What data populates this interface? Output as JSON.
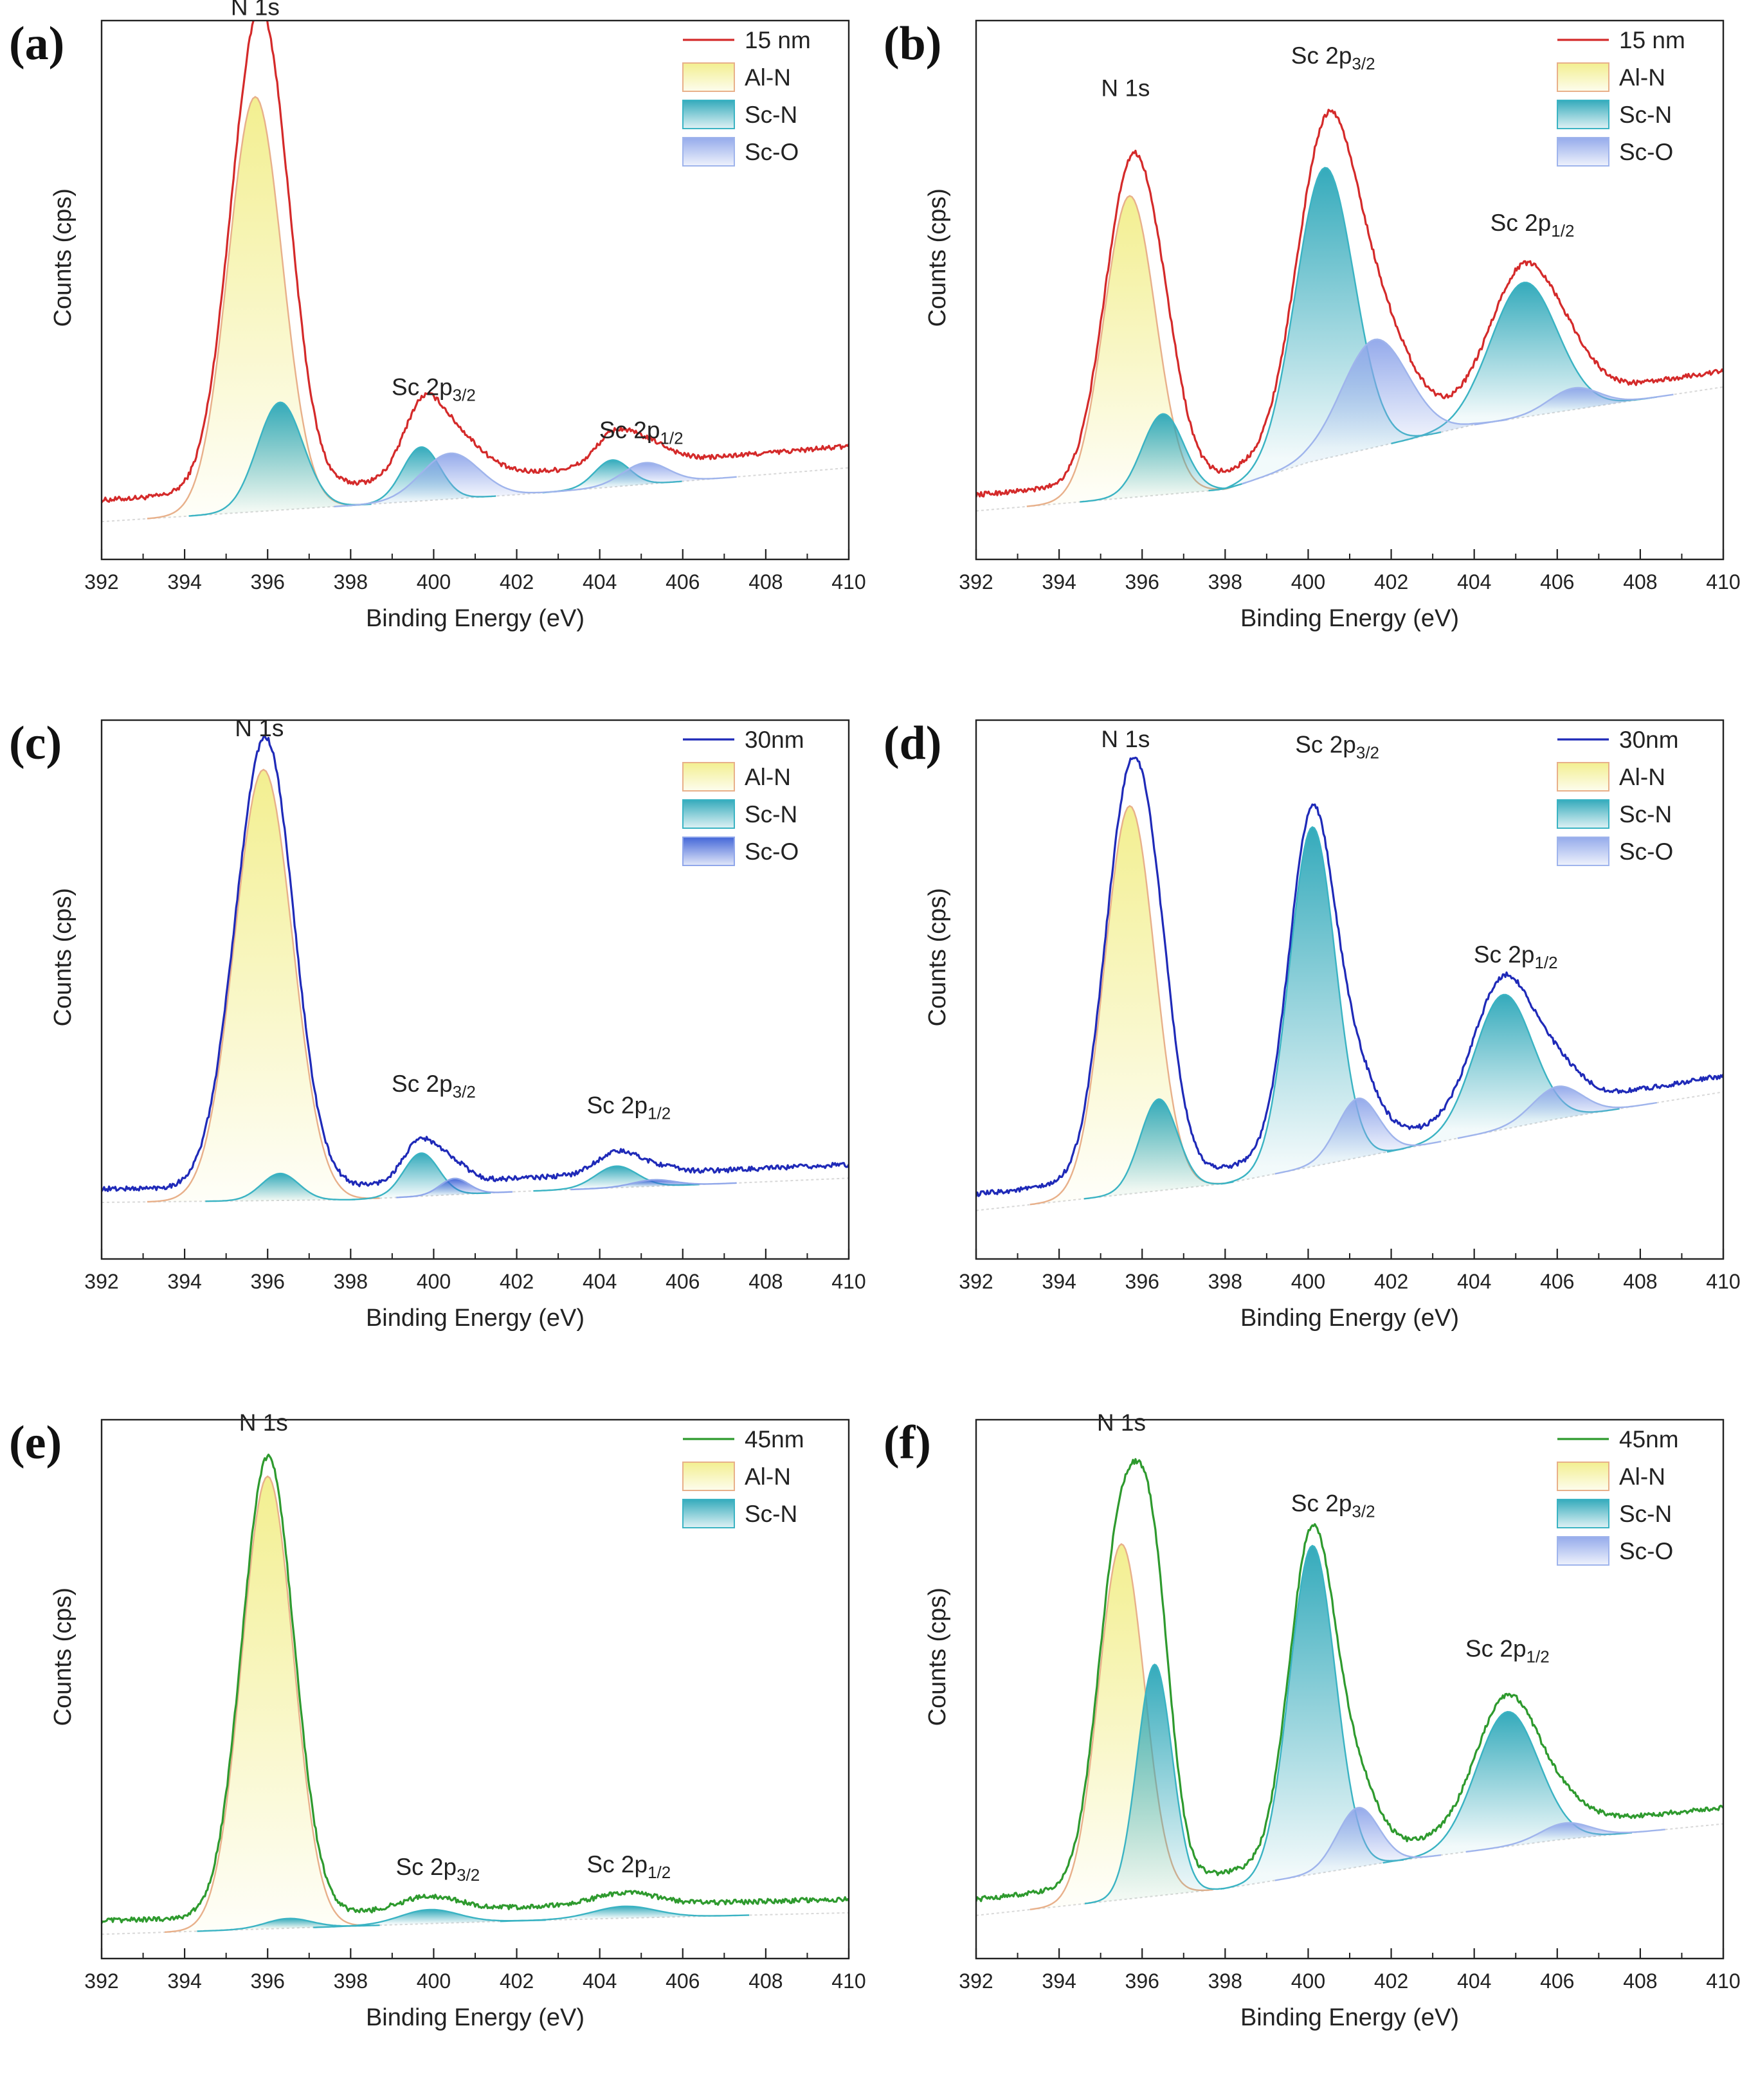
{
  "figure": {
    "colors": {
      "alN": "#f2ee8a",
      "alN_edge": "#e8b08a",
      "scN": "#2aa6b8",
      "scN_edge": "#3ab3c3",
      "scO": "#8fa6ea",
      "scO_edge": "#9fb4ec",
      "scO_dark": "#3a5fd6",
      "red": "#d42a2a",
      "blue": "#1f2ab8",
      "green": "#2e9a2e",
      "background_line": "#d8d8d8"
    }
  },
  "chart_data": [
    {
      "id": "a",
      "type": "line",
      "panel_label": "(a)",
      "xlabel": "Binding Energy (eV)",
      "ylabel": "Counts (cps)",
      "xlim": [
        392,
        410
      ],
      "ylim": [
        0,
        100
      ],
      "xticks": [
        "392",
        "394",
        "396",
        "398",
        "400",
        "402",
        "404",
        "406",
        "408",
        "410"
      ],
      "spectrum": {
        "name": "15 nm",
        "color": "red"
      },
      "baseline": {
        "x": [
          392,
          398,
          402,
          410
        ],
        "y": [
          7,
          10,
          12,
          17
        ]
      },
      "envelope_offset": 4,
      "components": [
        {
          "name": "Al-N",
          "style": "alN",
          "peaks": [
            [
              395.7,
              77,
              0.65
            ]
          ]
        },
        {
          "name": "Sc-N",
          "style": "scN",
          "peaks": [
            [
              396.3,
              20,
              0.55
            ],
            [
              399.7,
              10,
              0.45
            ],
            [
              404.3,
              5,
              0.42
            ]
          ]
        },
        {
          "name": "Sc-O",
          "style": "scO",
          "peaks": [
            [
              400.4,
              8.5,
              0.7
            ],
            [
              405.1,
              4,
              0.55
            ]
          ]
        }
      ],
      "legend": [
        "15 nm",
        "Al-N",
        "Sc-N",
        "Sc-O"
      ],
      "annotations": [
        {
          "main": "N 1s",
          "sub": "",
          "x": 395.7,
          "y": 101
        },
        {
          "main": "Sc 2p",
          "sub": "3/2",
          "x": 400.0,
          "y": 30.5
        },
        {
          "main": "Sc 2p",
          "sub": "1/2",
          "x": 405.0,
          "y": 22.5
        }
      ]
    },
    {
      "id": "b",
      "type": "line",
      "panel_label": "(b)",
      "xlabel": "Binding Energy (eV)",
      "ylabel": "Counts (cps)",
      "xlim": [
        392,
        410
      ],
      "ylim": [
        0,
        100
      ],
      "xticks": [
        "392",
        "394",
        "396",
        "398",
        "400",
        "402",
        "404",
        "406",
        "408",
        "410"
      ],
      "spectrum": {
        "name": "15 nm",
        "color": "red"
      },
      "baseline": {
        "x": [
          392,
          398,
          400,
          404,
          410
        ],
        "y": [
          9,
          13,
          18,
          25,
          32
        ]
      },
      "envelope_offset": 3,
      "components": [
        {
          "name": "Al-N",
          "style": "alN",
          "peaks": [
            [
              395.7,
              56,
              0.62
            ]
          ]
        },
        {
          "name": "Sc-N",
          "style": "scN",
          "peaks": [
            [
              396.5,
              15,
              0.5
            ],
            [
              400.4,
              54,
              0.7
            ],
            [
              405.2,
              25,
              0.8
            ]
          ]
        },
        {
          "name": "Sc-O",
          "style": "scO",
          "peaks": [
            [
              401.6,
              20,
              0.8
            ],
            [
              406.4,
              4,
              0.6
            ]
          ]
        }
      ],
      "legend": [
        "15 nm",
        "Al-N",
        "Sc-N",
        "Sc-O"
      ],
      "annotations": [
        {
          "main": "N 1s",
          "sub": "",
          "x": 395.6,
          "y": 86
        },
        {
          "main": "Sc 2p",
          "sub": "3/2",
          "x": 400.6,
          "y": 92
        },
        {
          "main": "Sc 2p",
          "sub": "1/2",
          "x": 405.4,
          "y": 61
        }
      ]
    },
    {
      "id": "c",
      "type": "line",
      "panel_label": "(c)",
      "xlabel": "Binding Energy (eV)",
      "ylabel": "Counts (cps)",
      "xlim": [
        392,
        410
      ],
      "ylim": [
        0,
        100
      ],
      "xticks": [
        "392",
        "394",
        "396",
        "398",
        "400",
        "402",
        "404",
        "406",
        "408",
        "410"
      ],
      "spectrum": {
        "name": "30nm",
        "color": "blue"
      },
      "baseline": {
        "x": [
          392,
          398,
          402,
          407,
          410
        ],
        "y": [
          10.5,
          11,
          12.5,
          14,
          15
        ]
      },
      "envelope_offset": 2.5,
      "components": [
        {
          "name": "Al-N",
          "style": "alN",
          "peaks": [
            [
              395.9,
              80,
              0.7
            ]
          ]
        },
        {
          "name": "Sc-N",
          "style": "scN",
          "peaks": [
            [
              396.3,
              5,
              0.45
            ],
            [
              399.7,
              8,
              0.42
            ],
            [
              404.4,
              4,
              0.5
            ]
          ]
        },
        {
          "name": "Sc-O",
          "style": "scO_dark",
          "peaks": [
            [
              400.5,
              3,
              0.35
            ],
            [
              405.3,
              1.2,
              0.5
            ]
          ]
        }
      ],
      "legend": [
        "30nm",
        "Al-N",
        "Sc-N",
        "Sc-O"
      ],
      "annotations": [
        {
          "main": "N 1s",
          "sub": "",
          "x": 395.8,
          "y": 97
        },
        {
          "main": "Sc 2p",
          "sub": "3/2",
          "x": 400.0,
          "y": 31
        },
        {
          "main": "Sc 2p",
          "sub": "1/2",
          "x": 404.7,
          "y": 27
        }
      ]
    },
    {
      "id": "d",
      "type": "line",
      "panel_label": "(d)",
      "xlabel": "Binding Energy (eV)",
      "ylabel": "Counts (cps)",
      "xlim": [
        392,
        410
      ],
      "ylim": [
        0,
        100
      ],
      "xticks": [
        "392",
        "394",
        "396",
        "398",
        "400",
        "402",
        "404",
        "406",
        "408",
        "410"
      ],
      "spectrum": {
        "name": "30nm",
        "color": "blue"
      },
      "baseline": {
        "x": [
          392,
          398,
          402,
          406,
          410
        ],
        "y": [
          9,
          14,
          20,
          26,
          31
        ]
      },
      "envelope_offset": 3,
      "components": [
        {
          "name": "Al-N",
          "style": "alN",
          "peaks": [
            [
              395.7,
              72,
              0.6
            ]
          ]
        },
        {
          "name": "Sc-N",
          "style": "scN",
          "peaks": [
            [
              396.4,
              17,
              0.45
            ],
            [
              400.1,
              63,
              0.55
            ],
            [
              404.7,
              25,
              0.7
            ]
          ]
        },
        {
          "name": "Sc-O",
          "style": "scO",
          "peaks": [
            [
              401.2,
              11,
              0.5
            ],
            [
              406.0,
              6,
              0.6
            ]
          ]
        }
      ],
      "legend": [
        "30nm",
        "Al-N",
        "Sc-N",
        "Sc-O"
      ],
      "annotations": [
        {
          "main": "N 1s",
          "sub": "",
          "x": 395.6,
          "y": 95
        },
        {
          "main": "Sc 2p",
          "sub": "3/2",
          "x": 400.7,
          "y": 94
        },
        {
          "main": "Sc 2p",
          "sub": "1/2",
          "x": 405.0,
          "y": 55
        }
      ]
    },
    {
      "id": "e",
      "type": "line",
      "panel_label": "(e)",
      "xlabel": "Binding Energy (eV)",
      "ylabel": "Counts (cps)",
      "xlim": [
        392,
        410
      ],
      "ylim": [
        0,
        100
      ],
      "xticks": [
        "392",
        "394",
        "396",
        "398",
        "400",
        "402",
        "404",
        "406",
        "408",
        "410"
      ],
      "spectrum": {
        "name": "45nm",
        "color": "green"
      },
      "baseline": {
        "x": [
          392,
          398,
          402,
          410
        ],
        "y": [
          4.5,
          6,
          7,
          8.5
        ]
      },
      "envelope_offset": 2.5,
      "components": [
        {
          "name": "Al-N",
          "style": "alN",
          "peaks": [
            [
              396.0,
              84,
              0.62
            ]
          ]
        },
        {
          "name": "Sc-N",
          "style": "scN",
          "peaks": [
            [
              396.5,
              1.8,
              0.55
            ],
            [
              399.9,
              2.6,
              0.7
            ],
            [
              404.6,
              2.2,
              0.75
            ]
          ]
        }
      ],
      "legend": [
        "45nm",
        "Al-N",
        "Sc-N"
      ],
      "annotations": [
        {
          "main": "N 1s",
          "sub": "",
          "x": 395.9,
          "y": 98
        },
        {
          "main": "Sc 2p",
          "sub": "3/2",
          "x": 400.1,
          "y": 15.5
        },
        {
          "main": "Sc 2p",
          "sub": "1/2",
          "x": 404.7,
          "y": 16
        }
      ]
    },
    {
      "id": "f",
      "type": "line",
      "panel_label": "(f)",
      "xlabel": "Binding Energy (eV)",
      "ylabel": "Counts (cps)",
      "xlim": [
        392,
        410
      ],
      "ylim": [
        0,
        100
      ],
      "xticks": [
        "392",
        "394",
        "396",
        "398",
        "400",
        "402",
        "404",
        "406",
        "408",
        "410"
      ],
      "spectrum": {
        "name": "45nm",
        "color": "green"
      },
      "baseline": {
        "x": [
          392,
          398,
          402,
          406,
          410
        ],
        "y": [
          8,
          13,
          18,
          22,
          25
        ]
      },
      "envelope_offset": 3,
      "components": [
        {
          "name": "Al-N",
          "style": "alN",
          "peaks": [
            [
              395.5,
              66,
              0.55
            ]
          ]
        },
        {
          "name": "Sc-N",
          "style": "scN",
          "peaks": [
            [
              396.3,
              43,
              0.42
            ],
            [
              400.1,
              61,
              0.55
            ],
            [
              404.8,
              25,
              0.75
            ]
          ]
        },
        {
          "name": "Sc-O",
          "style": "scO",
          "peaks": [
            [
              401.2,
              11,
              0.5
            ],
            [
              406.2,
              3,
              0.6
            ]
          ]
        }
      ],
      "legend": [
        "45nm",
        "Al-N",
        "Sc-N",
        "Sc-O"
      ],
      "annotations": [
        {
          "main": "N 1s",
          "sub": "",
          "x": 395.5,
          "y": 98
        },
        {
          "main": "Sc 2p",
          "sub": "3/2",
          "x": 400.6,
          "y": 83
        },
        {
          "main": "Sc 2p",
          "sub": "1/2",
          "x": 404.8,
          "y": 56
        }
      ]
    }
  ]
}
